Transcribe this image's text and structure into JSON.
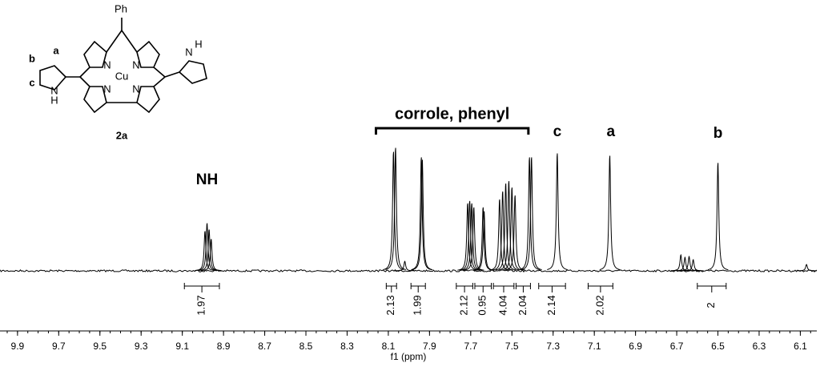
{
  "structure": {
    "phenyl": "Ph",
    "metal": "Cu",
    "nitrogen": "N",
    "hydrogen": "H",
    "positions": [
      "a",
      "b",
      "c"
    ],
    "compound": "2a"
  },
  "chart_data": {
    "type": "spectrum",
    "x_label": "f1 (ppm)",
    "xlim": [
      9.985,
      6.02
    ],
    "xticks": [
      9.9,
      9.7,
      9.5,
      9.3,
      9.1,
      8.9,
      8.7,
      8.5,
      8.3,
      8.1,
      7.9,
      7.7,
      7.5,
      7.3,
      7.1,
      6.9,
      6.7,
      6.5,
      6.3,
      6.1
    ],
    "ylim": [
      0,
      160
    ],
    "color": "#000000",
    "peaks": [
      {
        "ppm": 8.99,
        "height": 50
      },
      {
        "ppm": 8.98,
        "height": 60
      },
      {
        "ppm": 8.97,
        "height": 52
      },
      {
        "ppm": 8.96,
        "height": 40
      },
      {
        "ppm": 8.075,
        "height": 150
      },
      {
        "ppm": 8.065,
        "height": 155
      },
      {
        "ppm": 8.02,
        "height": 12
      },
      {
        "ppm": 7.94,
        "height": 143
      },
      {
        "ppm": 7.935,
        "height": 140
      },
      {
        "ppm": 7.715,
        "height": 85
      },
      {
        "ppm": 7.705,
        "height": 88
      },
      {
        "ppm": 7.695,
        "height": 85
      },
      {
        "ppm": 7.685,
        "height": 80
      },
      {
        "ppm": 7.64,
        "height": 80
      },
      {
        "ppm": 7.635,
        "height": 75
      },
      {
        "ppm": 7.56,
        "height": 90
      },
      {
        "ppm": 7.545,
        "height": 100
      },
      {
        "ppm": 7.53,
        "height": 110
      },
      {
        "ppm": 7.515,
        "height": 113
      },
      {
        "ppm": 7.5,
        "height": 105
      },
      {
        "ppm": 7.485,
        "height": 95
      },
      {
        "ppm": 7.415,
        "height": 143
      },
      {
        "ppm": 7.405,
        "height": 143
      },
      {
        "ppm": 7.28,
        "height": 148
      },
      {
        "ppm": 7.025,
        "height": 145
      },
      {
        "ppm": 6.68,
        "height": 20
      },
      {
        "ppm": 6.66,
        "height": 17
      },
      {
        "ppm": 6.64,
        "height": 18
      },
      {
        "ppm": 6.62,
        "height": 14
      },
      {
        "ppm": 6.5,
        "height": 136
      },
      {
        "ppm": 6.07,
        "height": 8
      }
    ],
    "integrals": [
      {
        "value": 1.97,
        "range": [
          9.09,
          8.92
        ]
      },
      {
        "value": 2.13,
        "range": [
          8.11,
          8.06
        ]
      },
      {
        "value": 1.99,
        "range": [
          7.99,
          7.92
        ]
      },
      {
        "value": 2.12,
        "range": [
          7.77,
          7.69
        ]
      },
      {
        "value": 0.95,
        "range": [
          7.68,
          7.6
        ]
      },
      {
        "value": 4.04,
        "range": [
          7.59,
          7.49
        ]
      },
      {
        "value": 2.04,
        "range": [
          7.48,
          7.41
        ]
      },
      {
        "value": 2.14,
        "range": [
          7.37,
          7.24
        ]
      },
      {
        "value": 2.02,
        "range": [
          7.13,
          7.01
        ]
      },
      {
        "value": 2.0,
        "range": [
          6.6,
          6.46
        ]
      }
    ],
    "group": {
      "label": "corrole, phenyl",
      "range": [
        8.16,
        7.42
      ]
    },
    "annotations": [
      {
        "label": "NH",
        "ppm": 8.98
      },
      {
        "label": "c",
        "ppm": 7.28
      },
      {
        "label": "a",
        "ppm": 7.02
      },
      {
        "label": "b",
        "ppm": 6.5
      }
    ]
  }
}
